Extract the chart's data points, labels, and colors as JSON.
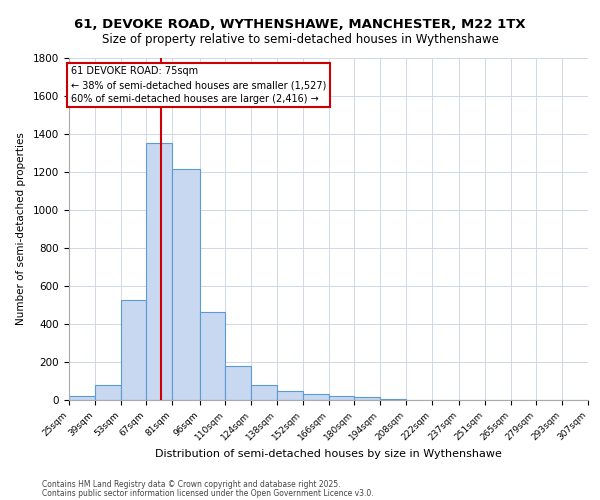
{
  "title1": "61, DEVOKE ROAD, WYTHENSHAWE, MANCHESTER, M22 1TX",
  "title2": "Size of property relative to semi-detached houses in Wythenshawe",
  "xlabel": "Distribution of semi-detached houses by size in Wythenshawe",
  "ylabel": "Number of semi-detached properties",
  "bin_edges": [
    25,
    39,
    53,
    67,
    81,
    96,
    110,
    124,
    138,
    152,
    166,
    180,
    194,
    208,
    222,
    237,
    251,
    265,
    279,
    293,
    307
  ],
  "bin_counts": [
    20,
    80,
    525,
    1350,
    1215,
    465,
    180,
    80,
    45,
    30,
    20,
    15,
    5,
    2,
    1,
    1,
    0,
    0,
    0,
    0
  ],
  "bar_facecolor": "#c8d8f0",
  "bar_edgecolor": "#5b9bd5",
  "vline_x": 75,
  "vline_color": "#cc0000",
  "annotation_title": "61 DEVOKE ROAD: 75sqm",
  "annotation_line1": "← 38% of semi-detached houses are smaller (1,527)",
  "annotation_line2": "60% of semi-detached houses are larger (2,416) →",
  "annotation_box_color": "#cc0000",
  "ylim": [
    0,
    1800
  ],
  "yticks": [
    0,
    200,
    400,
    600,
    800,
    1000,
    1200,
    1400,
    1600,
    1800
  ],
  "tick_labels": [
    "25sqm",
    "39sqm",
    "53sqm",
    "67sqm",
    "81sqm",
    "96sqm",
    "110sqm",
    "124sqm",
    "138sqm",
    "152sqm",
    "166sqm",
    "180sqm",
    "194sqm",
    "208sqm",
    "222sqm",
    "237sqm",
    "251sqm",
    "265sqm",
    "279sqm",
    "293sqm",
    "307sqm"
  ],
  "footer1": "Contains HM Land Registry data © Crown copyright and database right 2025.",
  "footer2": "Contains public sector information licensed under the Open Government Licence v3.0.",
  "bg_color": "#ffffff",
  "grid_color": "#d0d8e8"
}
